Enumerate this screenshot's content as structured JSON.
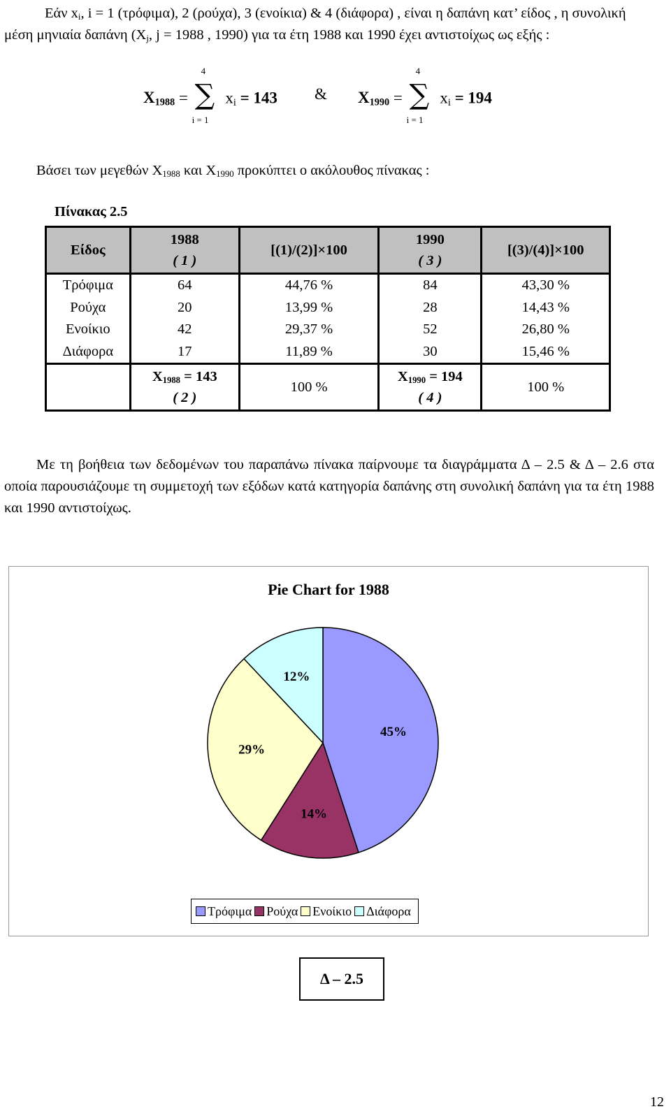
{
  "intro": {
    "line1": "Εάν x",
    "line1_sub": "i",
    "line1_rest": ", i = 1 (τρόφιμα), 2 (ρούχα), 3 (ενοίκια) & 4 (διάφορα) , είναι η δαπάνη κατ’ είδος , η συνολική μέση μηνιαία δαπάνη (X",
    "line1_sub2": "j",
    "line1_end": ", j = 1988 , 1990) για τα έτη 1988 και 1990 έχει αντιστοίχως ως εξής :"
  },
  "formula": {
    "x_letter": "X",
    "sub1": "1988",
    "sub2": "1990",
    "sum_upper": "4",
    "sum_lower": "i = 1",
    "xi": "x",
    "xi_sub": "i",
    "result1": "= 143",
    "result2": "= 194",
    "amp": "&",
    "eq": "="
  },
  "basis": {
    "pre": "Βάσει των μεγεθών X",
    "sub1": "1988",
    "mid": " και X",
    "sub2": "1990",
    "post": " προκύπτει ο ακόλουθος πίνακας :"
  },
  "table": {
    "title": "Πίνακας 2.5",
    "headers": {
      "kind": "Είδος",
      "y1988": "1988",
      "n1": "( 1 )",
      "ratio1": "[(1)/(2)]×100",
      "y1990": "1990",
      "n3": "( 3 )",
      "ratio2": "[(3)/(4)]×100"
    },
    "rows": [
      {
        "kind": "Τρόφιμα",
        "v1988": "64",
        "p1988": "44,76 %",
        "v1990": "84",
        "p1990": "43,30 %"
      },
      {
        "kind": "Ρούχα",
        "v1988": "20",
        "p1988": "13,99 %",
        "v1990": "28",
        "p1990": "14,43 %"
      },
      {
        "kind": "Ενοίκιο",
        "v1988": "42",
        "p1988": "29,37 %",
        "v1990": "52",
        "p1990": "26,80 %"
      },
      {
        "kind": "Διάφορα",
        "v1988": "17",
        "p1988": "11,89 %",
        "v1990": "30",
        "p1990": "15,46 %"
      }
    ],
    "total": {
      "x": "X",
      "sub1": "1988",
      "val1": " = 143",
      "n2": "( 2 )",
      "pct1": "100 %",
      "sub2": "1990",
      "val2": " = 194",
      "n4": "( 4 )",
      "pct2": "100 %"
    }
  },
  "paragraph": "Με τη βοήθεια των δεδομένων του παραπάνω πίνακα παίρνουμε τα διαγράμματα Δ – 2.5 & Δ – 2.6 στα οποία παρουσιάζουμε τη συμμετοχή των εξόδων κατά κατηγορία δαπάνης στη συνολική δαπάνη για τα έτη 1988 και 1990 αντιστοίχως.",
  "chart_data": {
    "type": "pie",
    "title": "Pie Chart for 1988",
    "categories": [
      "Τρόφιμα",
      "Ρούχα",
      "Ενοίκιο",
      "Διάφορα"
    ],
    "values": [
      45,
      14,
      29,
      12
    ],
    "labels": [
      "45%",
      "14%",
      "29%",
      "12%"
    ],
    "colors": [
      "#9999ff",
      "#993366",
      "#ffffcc",
      "#ccffff"
    ],
    "legend_position": "bottom"
  },
  "figure_label": "Δ – 2.5",
  "page_number": "12"
}
